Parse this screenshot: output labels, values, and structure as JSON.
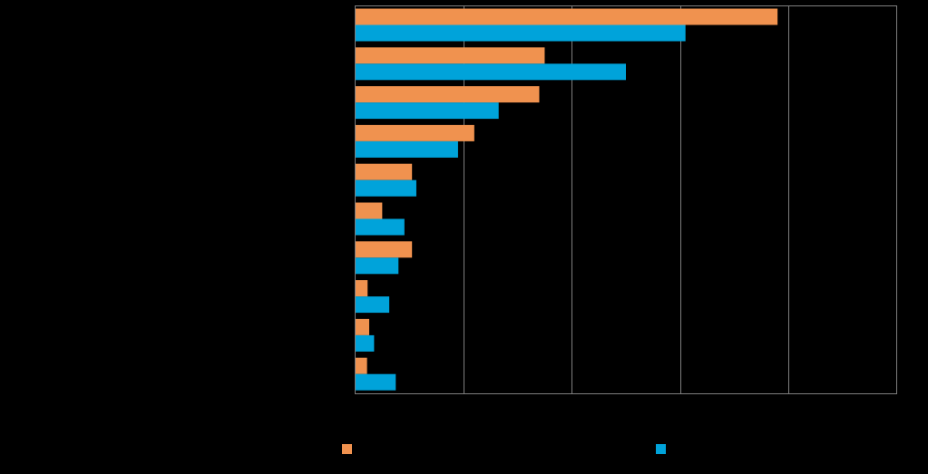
{
  "chart_data": {
    "type": "bar",
    "orientation": "horizontal",
    "title": "",
    "xlabel": "",
    "ylabel": "",
    "xlim": [
      0,
      100
    ],
    "grid": true,
    "categories": [
      "",
      "",
      "",
      "",
      "",
      "",
      "",
      "",
      "",
      ""
    ],
    "series": [
      {
        "name": "",
        "color": "#F0924F",
        "values": [
          78,
          35,
          34,
          22,
          10.5,
          5,
          10.5,
          2.3,
          2.6,
          2.2
        ]
      },
      {
        "name": "",
        "color": "#00A3DA",
        "values": [
          61,
          50,
          26.5,
          19,
          11.3,
          9.1,
          8,
          6.3,
          3.5,
          7.5
        ]
      }
    ]
  }
}
